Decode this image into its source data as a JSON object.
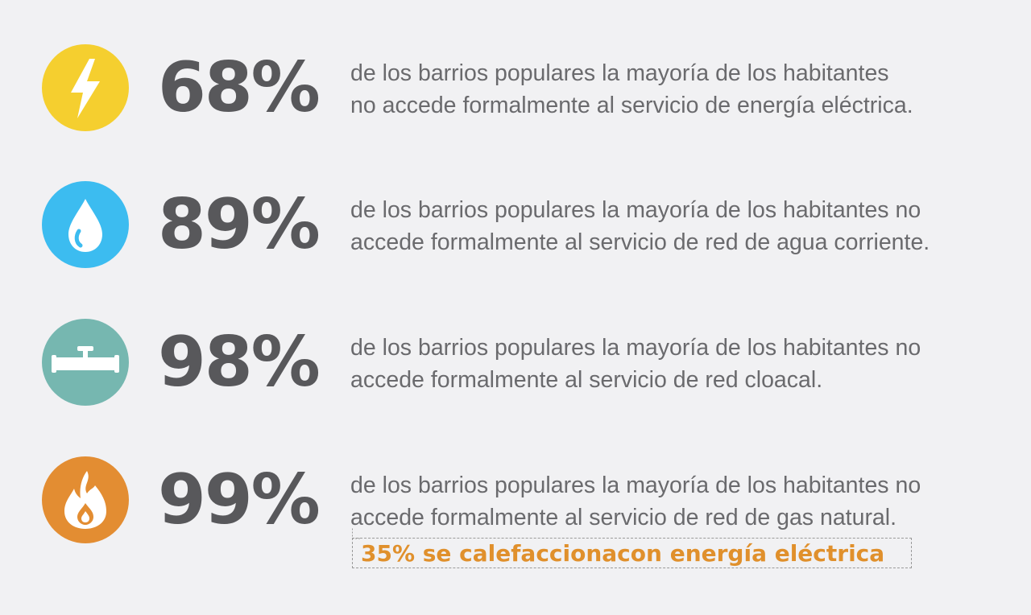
{
  "colors": {
    "background": "#f1f1f3",
    "percentage_text": "#58585b",
    "description_text": "#6a6a6d",
    "highlight": "#e0902c",
    "electricity": "#f5cf2f",
    "water": "#3cbcf0",
    "sewer": "#76b7b0",
    "gas": "#e38d32"
  },
  "stats": [
    {
      "icon": "lightning-icon",
      "percentage": "68%",
      "line1": "de los barrios populares la mayoría de los habitantes",
      "line2": "no accede formalmente al servicio de energía eléctrica."
    },
    {
      "icon": "water-drop-icon",
      "percentage": "89%",
      "line1": "de los barrios populares la mayoría de los habitantes no",
      "line2": "accede formalmente al servicio de red de agua corriente."
    },
    {
      "icon": "pipe-valve-icon",
      "percentage": "98%",
      "line1": "de los barrios populares la mayoría de los habitantes no",
      "line2": "accede formalmente al servicio de red cloacal."
    },
    {
      "icon": "flame-icon",
      "percentage": "99%",
      "line1": "de los barrios populares la mayoría de los habitantes no",
      "line2": "accede formalmente al servicio de red de gas natural."
    }
  ],
  "callout": {
    "text": "35% se calefaccionacon energía eléctrica"
  }
}
